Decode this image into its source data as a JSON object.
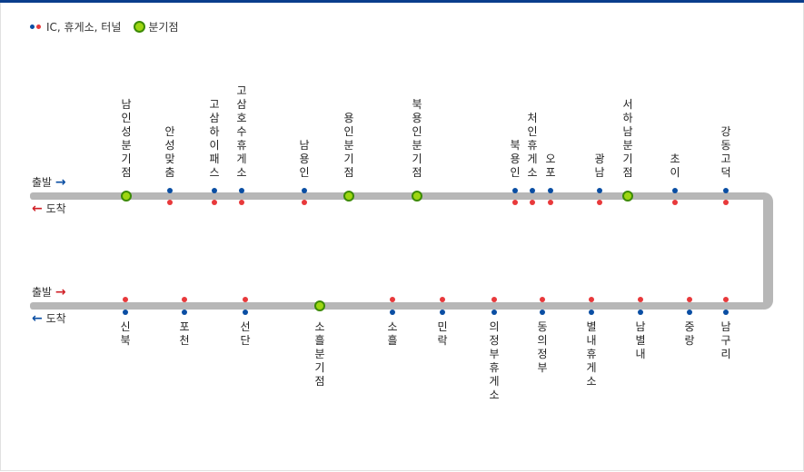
{
  "legend": {
    "ic_label": "IC, 휴게소, 터널",
    "junction_label": "분기점"
  },
  "directions": {
    "upper_departure": "출발",
    "upper_arrival": "도착",
    "lower_departure": "출발",
    "lower_arrival": "도착"
  },
  "colors": {
    "road": "#b7b7b7",
    "dot_blue": "#0a4ea3",
    "dot_red": "#e8393b",
    "junction_fill": "#9dd611",
    "junction_border": "#3c8a06"
  },
  "upper_stations": [
    {
      "name": "남인성분기점",
      "kind": "junction"
    },
    {
      "name": "안성맞춤",
      "kind": "ic"
    },
    {
      "name": "고삼하이패스",
      "kind": "ic"
    },
    {
      "name": "고삼호수휴게소",
      "kind": "ic"
    },
    {
      "name": "남용인",
      "kind": "ic"
    },
    {
      "name": "용인분기점",
      "kind": "junction"
    },
    {
      "name": "북용인분기점",
      "kind": "junction"
    },
    {
      "name": "북용인",
      "kind": "ic"
    },
    {
      "name": "처인휴게소",
      "kind": "ic"
    },
    {
      "name": "오포",
      "kind": "ic"
    },
    {
      "name": "광남",
      "kind": "ic"
    },
    {
      "name": "서하남분기점",
      "kind": "junction"
    },
    {
      "name": "초이",
      "kind": "ic"
    },
    {
      "name": "강동고덕",
      "kind": "ic"
    }
  ],
  "lower_stations": [
    {
      "name": "신북",
      "kind": "ic"
    },
    {
      "name": "포천",
      "kind": "ic"
    },
    {
      "name": "선단",
      "kind": "ic"
    },
    {
      "name": "소흘분기점",
      "kind": "junction"
    },
    {
      "name": "소흘",
      "kind": "ic"
    },
    {
      "name": "민락",
      "kind": "ic"
    },
    {
      "name": "의정부휴게소",
      "kind": "ic"
    },
    {
      "name": "동의정부",
      "kind": "ic"
    },
    {
      "name": "별내휴게소",
      "kind": "ic"
    },
    {
      "name": "남별내",
      "kind": "ic"
    },
    {
      "name": "중랑",
      "kind": "ic"
    },
    {
      "name": "남구리",
      "kind": "ic"
    }
  ]
}
